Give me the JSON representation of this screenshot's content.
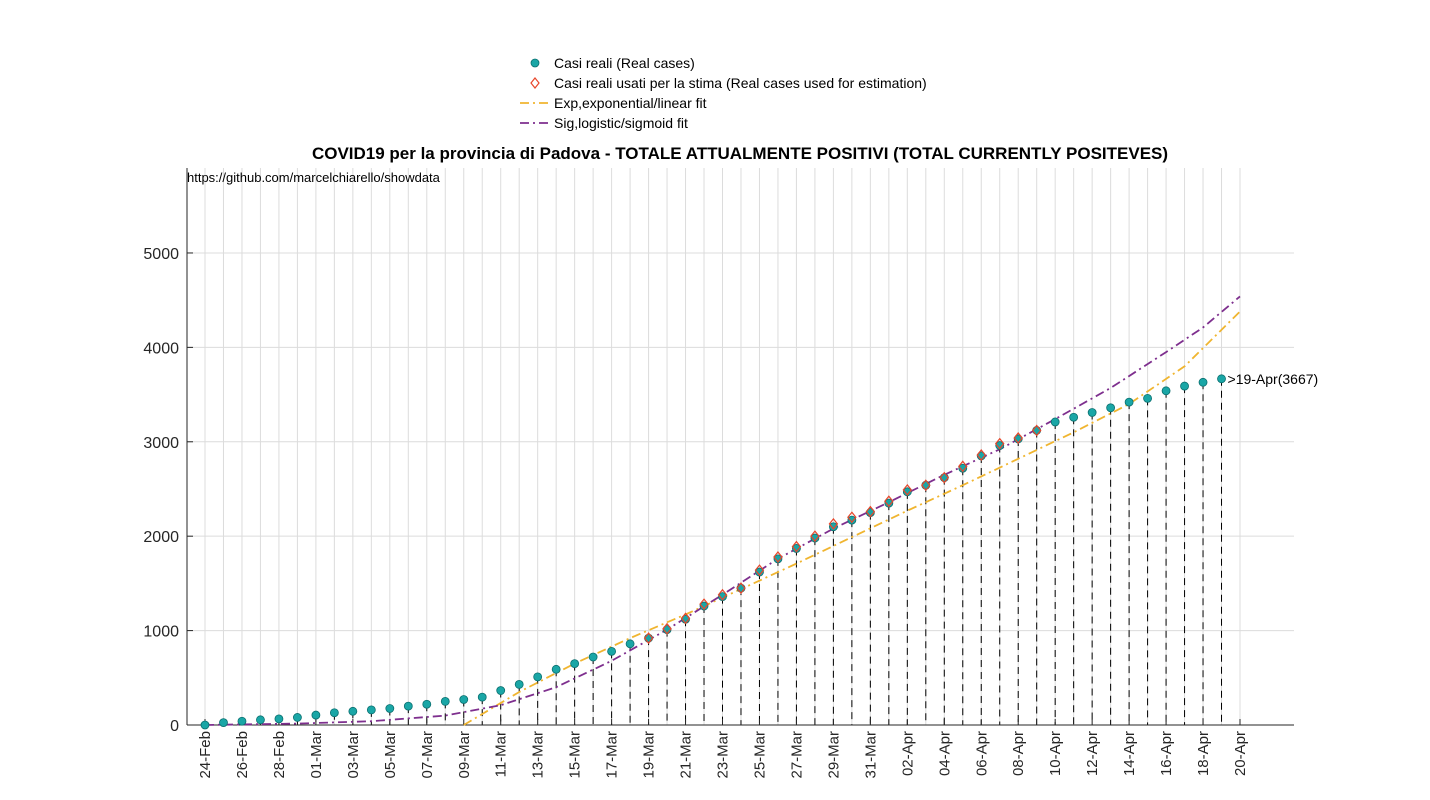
{
  "chart_data": {
    "type": "scatter",
    "title": "COVID19 per la provincia di Padova - TOTALE ATTUALMENTE POSITIVI (TOTAL CURRENTLY POSITEVES)",
    "source_text": "https://github.com/marcelchiarello/showdata",
    "xlabel": "",
    "ylabel": "",
    "ylim": [
      0,
      5900
    ],
    "y_ticks": [
      0,
      1000,
      2000,
      3000,
      4000,
      5000
    ],
    "x_ticks": [
      "24-Feb",
      "26-Feb",
      "28-Feb",
      "01-Mar",
      "03-Mar",
      "05-Mar",
      "07-Mar",
      "09-Mar",
      "11-Mar",
      "13-Mar",
      "15-Mar",
      "17-Mar",
      "19-Mar",
      "21-Mar",
      "23-Mar",
      "25-Mar",
      "27-Mar",
      "29-Mar",
      "31-Mar",
      "02-Apr",
      "04-Apr",
      "06-Apr",
      "08-Apr",
      "10-Apr",
      "12-Apr",
      "14-Apr",
      "16-Apr",
      "18-Apr",
      "20-Apr"
    ],
    "x_start_date": "24-Feb",
    "x_end_date": "20-Apr",
    "grid": true,
    "legend_position": "top-center",
    "annotation": ">19-Apr(3667)",
    "series": [
      {
        "name": "Casi reali (Real cases)",
        "marker": "circle",
        "color": "#1aa6a6",
        "dates": [
          "24-Feb",
          "25-Feb",
          "26-Feb",
          "27-Feb",
          "28-Feb",
          "29-Feb",
          "01-Mar",
          "02-Mar",
          "03-Mar",
          "04-Mar",
          "05-Mar",
          "06-Mar",
          "07-Mar",
          "08-Mar",
          "09-Mar",
          "10-Mar",
          "11-Mar",
          "12-Mar",
          "13-Mar",
          "14-Mar",
          "15-Mar",
          "16-Mar",
          "17-Mar",
          "18-Mar",
          "19-Mar",
          "20-Mar",
          "21-Mar",
          "22-Mar",
          "23-Mar",
          "24-Mar",
          "25-Mar",
          "26-Mar",
          "27-Mar",
          "28-Mar",
          "29-Mar",
          "30-Mar",
          "31-Mar",
          "01-Apr",
          "02-Apr",
          "03-Apr",
          "04-Apr",
          "05-Apr",
          "06-Apr",
          "07-Apr",
          "08-Apr",
          "09-Apr",
          "10-Apr",
          "11-Apr",
          "12-Apr",
          "13-Apr",
          "14-Apr",
          "15-Apr",
          "16-Apr",
          "17-Apr",
          "18-Apr",
          "19-Apr"
        ],
        "values": [
          0,
          25,
          40,
          55,
          65,
          80,
          105,
          130,
          145,
          160,
          175,
          200,
          220,
          250,
          270,
          295,
          365,
          430,
          510,
          590,
          650,
          720,
          780,
          860,
          920,
          1010,
          1120,
          1260,
          1360,
          1450,
          1620,
          1760,
          1870,
          1980,
          2100,
          2170,
          2250,
          2350,
          2470,
          2540,
          2620,
          2720,
          2850,
          2960,
          3030,
          3120,
          3210,
          3260,
          3310,
          3360,
          3420,
          3460,
          3540,
          3590,
          3630,
          3667
        ]
      },
      {
        "name": "Casi reali usati per la stima (Real cases used for estimation)",
        "marker": "diamond",
        "color": "#e8462a",
        "dates": [
          "19-Mar",
          "20-Mar",
          "21-Mar",
          "22-Mar",
          "23-Mar",
          "24-Mar",
          "25-Mar",
          "26-Mar",
          "27-Mar",
          "28-Mar",
          "29-Mar",
          "30-Mar",
          "31-Mar",
          "01-Apr",
          "02-Apr",
          "03-Apr",
          "04-Apr",
          "05-Apr",
          "06-Apr",
          "07-Apr",
          "08-Apr",
          "09-Apr"
        ],
        "values": [
          920,
          1020,
          1130,
          1280,
          1380,
          1450,
          1640,
          1780,
          1890,
          2000,
          2130,
          2200,
          2260,
          2370,
          2490,
          2540,
          2620,
          2740,
          2860,
          2980,
          3040,
          3120
        ]
      },
      {
        "name": "Exp,exponential/linear fit",
        "line": "dashdot",
        "color": "#f0b530",
        "dates": [
          "09-Mar",
          "12-Mar",
          "15-Mar",
          "18-Mar",
          "21-Mar",
          "24-Mar",
          "27-Mar",
          "30-Mar",
          "02-Apr",
          "05-Apr",
          "08-Apr",
          "11-Apr",
          "14-Apr",
          "17-Apr",
          "20-Apr"
        ],
        "values": [
          0,
          350,
          650,
          920,
          1170,
          1440,
          1710,
          1990,
          2270,
          2540,
          2820,
          3100,
          3400,
          3800,
          4380
        ]
      },
      {
        "name": "Sig,logistic/sigmoid fit",
        "line": "dashdot",
        "color": "#7e2f8e",
        "dates": [
          "24-Feb",
          "29-Feb",
          "04-Mar",
          "08-Mar",
          "11-Mar",
          "14-Mar",
          "17-Mar",
          "20-Mar",
          "23-Mar",
          "26-Mar",
          "29-Mar",
          "01-Apr",
          "04-Apr",
          "07-Apr",
          "10-Apr",
          "13-Apr",
          "16-Apr",
          "18-Apr",
          "20-Apr"
        ],
        "values": [
          0,
          15,
          40,
          100,
          210,
          400,
          680,
          1010,
          1380,
          1760,
          2080,
          2360,
          2650,
          2920,
          3240,
          3570,
          3950,
          4210,
          4540
        ]
      }
    ]
  }
}
